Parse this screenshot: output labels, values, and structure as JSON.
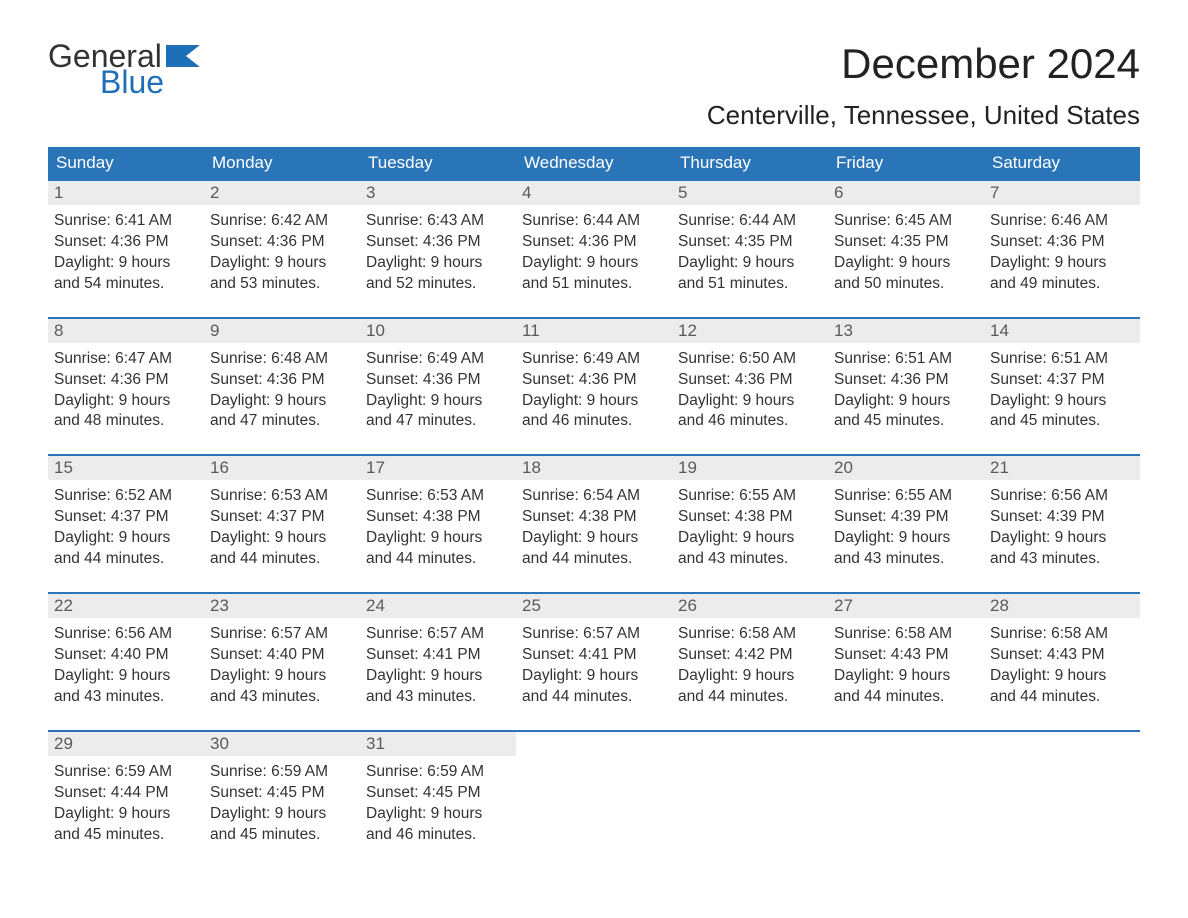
{
  "logo": {
    "general": "General",
    "blue": "Blue"
  },
  "header": {
    "title": "December 2024",
    "location": "Centerville, Tennessee, United States"
  },
  "colors": {
    "header_bg": "#2a74b8",
    "header_text": "#ffffff",
    "rule": "#2a74b8",
    "daynum_bg": "#ececec",
    "daynum_text": "#5a5a5a",
    "body_text": "#333333",
    "logo_blue": "#1e6fb8",
    "background": "#ffffff"
  },
  "typography": {
    "title_fontsize": 42,
    "location_fontsize": 26,
    "dow_fontsize": 17,
    "body_fontsize": 15.5
  },
  "days_of_week": [
    "Sunday",
    "Monday",
    "Tuesday",
    "Wednesday",
    "Thursday",
    "Friday",
    "Saturday"
  ],
  "labels": {
    "sunrise": "Sunrise:",
    "sunset": "Sunset:",
    "daylight": "Daylight:",
    "minutes_suffix": "minutes."
  },
  "calendar": {
    "type": "month-grid",
    "columns": 7,
    "weeks": [
      [
        {
          "n": "1",
          "sunrise": "6:41 AM",
          "sunset": "4:36 PM",
          "dl1": "9 hours",
          "dl2": "and 54 minutes."
        },
        {
          "n": "2",
          "sunrise": "6:42 AM",
          "sunset": "4:36 PM",
          "dl1": "9 hours",
          "dl2": "and 53 minutes."
        },
        {
          "n": "3",
          "sunrise": "6:43 AM",
          "sunset": "4:36 PM",
          "dl1": "9 hours",
          "dl2": "and 52 minutes."
        },
        {
          "n": "4",
          "sunrise": "6:44 AM",
          "sunset": "4:36 PM",
          "dl1": "9 hours",
          "dl2": "and 51 minutes."
        },
        {
          "n": "5",
          "sunrise": "6:44 AM",
          "sunset": "4:35 PM",
          "dl1": "9 hours",
          "dl2": "and 51 minutes."
        },
        {
          "n": "6",
          "sunrise": "6:45 AM",
          "sunset": "4:35 PM",
          "dl1": "9 hours",
          "dl2": "and 50 minutes."
        },
        {
          "n": "7",
          "sunrise": "6:46 AM",
          "sunset": "4:36 PM",
          "dl1": "9 hours",
          "dl2": "and 49 minutes."
        }
      ],
      [
        {
          "n": "8",
          "sunrise": "6:47 AM",
          "sunset": "4:36 PM",
          "dl1": "9 hours",
          "dl2": "and 48 minutes."
        },
        {
          "n": "9",
          "sunrise": "6:48 AM",
          "sunset": "4:36 PM",
          "dl1": "9 hours",
          "dl2": "and 47 minutes."
        },
        {
          "n": "10",
          "sunrise": "6:49 AM",
          "sunset": "4:36 PM",
          "dl1": "9 hours",
          "dl2": "and 47 minutes."
        },
        {
          "n": "11",
          "sunrise": "6:49 AM",
          "sunset": "4:36 PM",
          "dl1": "9 hours",
          "dl2": "and 46 minutes."
        },
        {
          "n": "12",
          "sunrise": "6:50 AM",
          "sunset": "4:36 PM",
          "dl1": "9 hours",
          "dl2": "and 46 minutes."
        },
        {
          "n": "13",
          "sunrise": "6:51 AM",
          "sunset": "4:36 PM",
          "dl1": "9 hours",
          "dl2": "and 45 minutes."
        },
        {
          "n": "14",
          "sunrise": "6:51 AM",
          "sunset": "4:37 PM",
          "dl1": "9 hours",
          "dl2": "and 45 minutes."
        }
      ],
      [
        {
          "n": "15",
          "sunrise": "6:52 AM",
          "sunset": "4:37 PM",
          "dl1": "9 hours",
          "dl2": "and 44 minutes."
        },
        {
          "n": "16",
          "sunrise": "6:53 AM",
          "sunset": "4:37 PM",
          "dl1": "9 hours",
          "dl2": "and 44 minutes."
        },
        {
          "n": "17",
          "sunrise": "6:53 AM",
          "sunset": "4:38 PM",
          "dl1": "9 hours",
          "dl2": "and 44 minutes."
        },
        {
          "n": "18",
          "sunrise": "6:54 AM",
          "sunset": "4:38 PM",
          "dl1": "9 hours",
          "dl2": "and 44 minutes."
        },
        {
          "n": "19",
          "sunrise": "6:55 AM",
          "sunset": "4:38 PM",
          "dl1": "9 hours",
          "dl2": "and 43 minutes."
        },
        {
          "n": "20",
          "sunrise": "6:55 AM",
          "sunset": "4:39 PM",
          "dl1": "9 hours",
          "dl2": "and 43 minutes."
        },
        {
          "n": "21",
          "sunrise": "6:56 AM",
          "sunset": "4:39 PM",
          "dl1": "9 hours",
          "dl2": "and 43 minutes."
        }
      ],
      [
        {
          "n": "22",
          "sunrise": "6:56 AM",
          "sunset": "4:40 PM",
          "dl1": "9 hours",
          "dl2": "and 43 minutes."
        },
        {
          "n": "23",
          "sunrise": "6:57 AM",
          "sunset": "4:40 PM",
          "dl1": "9 hours",
          "dl2": "and 43 minutes."
        },
        {
          "n": "24",
          "sunrise": "6:57 AM",
          "sunset": "4:41 PM",
          "dl1": "9 hours",
          "dl2": "and 43 minutes."
        },
        {
          "n": "25",
          "sunrise": "6:57 AM",
          "sunset": "4:41 PM",
          "dl1": "9 hours",
          "dl2": "and 44 minutes."
        },
        {
          "n": "26",
          "sunrise": "6:58 AM",
          "sunset": "4:42 PM",
          "dl1": "9 hours",
          "dl2": "and 44 minutes."
        },
        {
          "n": "27",
          "sunrise": "6:58 AM",
          "sunset": "4:43 PM",
          "dl1": "9 hours",
          "dl2": "and 44 minutes."
        },
        {
          "n": "28",
          "sunrise": "6:58 AM",
          "sunset": "4:43 PM",
          "dl1": "9 hours",
          "dl2": "and 44 minutes."
        }
      ],
      [
        {
          "n": "29",
          "sunrise": "6:59 AM",
          "sunset": "4:44 PM",
          "dl1": "9 hours",
          "dl2": "and 45 minutes."
        },
        {
          "n": "30",
          "sunrise": "6:59 AM",
          "sunset": "4:45 PM",
          "dl1": "9 hours",
          "dl2": "and 45 minutes."
        },
        {
          "n": "31",
          "sunrise": "6:59 AM",
          "sunset": "4:45 PM",
          "dl1": "9 hours",
          "dl2": "and 46 minutes."
        },
        null,
        null,
        null,
        null
      ]
    ]
  }
}
